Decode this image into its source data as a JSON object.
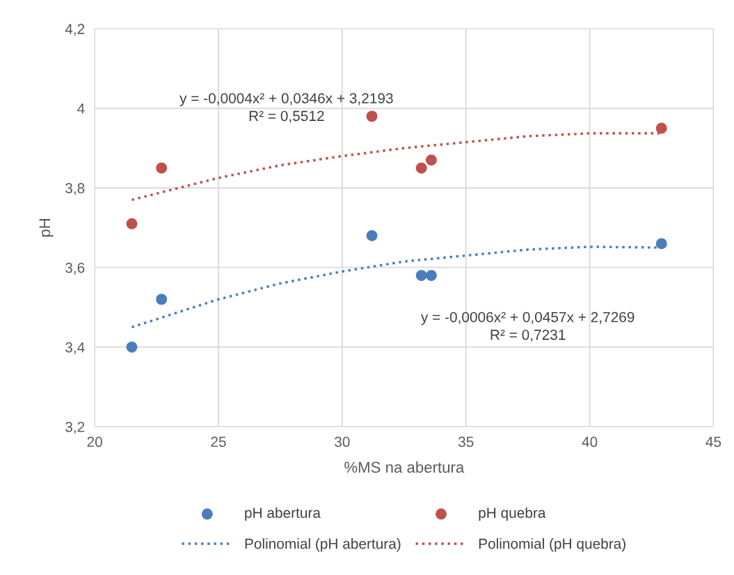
{
  "chart_data": {
    "type": "scatter",
    "xlabel": "%MS na abertura",
    "ylabel": "pH",
    "xlim": [
      20,
      45
    ],
    "xticks": [
      20,
      25,
      30,
      35,
      40,
      45
    ],
    "ylim": [
      3.2,
      4.2
    ],
    "yticks": [
      {
        "value": 3.2,
        "label": "3,2"
      },
      {
        "value": 3.4,
        "label": "3,4"
      },
      {
        "value": 3.6,
        "label": "3,6"
      },
      {
        "value": 3.8,
        "label": "3,8"
      },
      {
        "value": 4,
        "label": "4"
      },
      {
        "value": 4.2,
        "label": "4,2"
      }
    ],
    "grid": true,
    "legend": "bottom",
    "marker": "circle",
    "series": [
      {
        "name": "pH abertura",
        "color": "#4a7ebb",
        "x": [
          21.5,
          22.7,
          31.2,
          33.2,
          33.6,
          42.9
        ],
        "values": [
          3.4,
          3.52,
          3.68,
          3.58,
          3.58,
          3.66
        ]
      },
      {
        "name": "pH quebra",
        "color": "#c0504d",
        "x": [
          21.5,
          22.7,
          31.2,
          33.2,
          33.6,
          42.9
        ],
        "values": [
          3.71,
          3.85,
          3.98,
          3.85,
          3.87,
          3.95
        ]
      },
      {
        "name": "Polinomial (pH abertura)",
        "type": "line",
        "line_style": "dotted",
        "marker": "none",
        "color": "#4a7ebb",
        "x": [
          21.5,
          25,
          27.5,
          30,
          32.5,
          35,
          37.5,
          40,
          42.9
        ],
        "values": [
          3.45,
          3.52,
          3.56,
          3.59,
          3.615,
          3.63,
          3.645,
          3.652,
          3.65
        ]
      },
      {
        "name": "Polinomial (pH quebra)",
        "type": "line",
        "line_style": "dotted",
        "marker": "none",
        "color": "#c0504d",
        "x": [
          21.5,
          25,
          27.5,
          30,
          32.5,
          35,
          37.5,
          40,
          42.9
        ],
        "values": [
          3.77,
          3.825,
          3.857,
          3.88,
          3.9,
          3.915,
          3.93,
          3.937,
          3.937
        ]
      }
    ],
    "annotations": [
      "y = -0,0004x² + 0,0346x + 3,2193\nR² = 0,5512",
      "y = -0,0006x² + 0,0457x + 2,7269\nR² = 0,7231"
    ]
  }
}
